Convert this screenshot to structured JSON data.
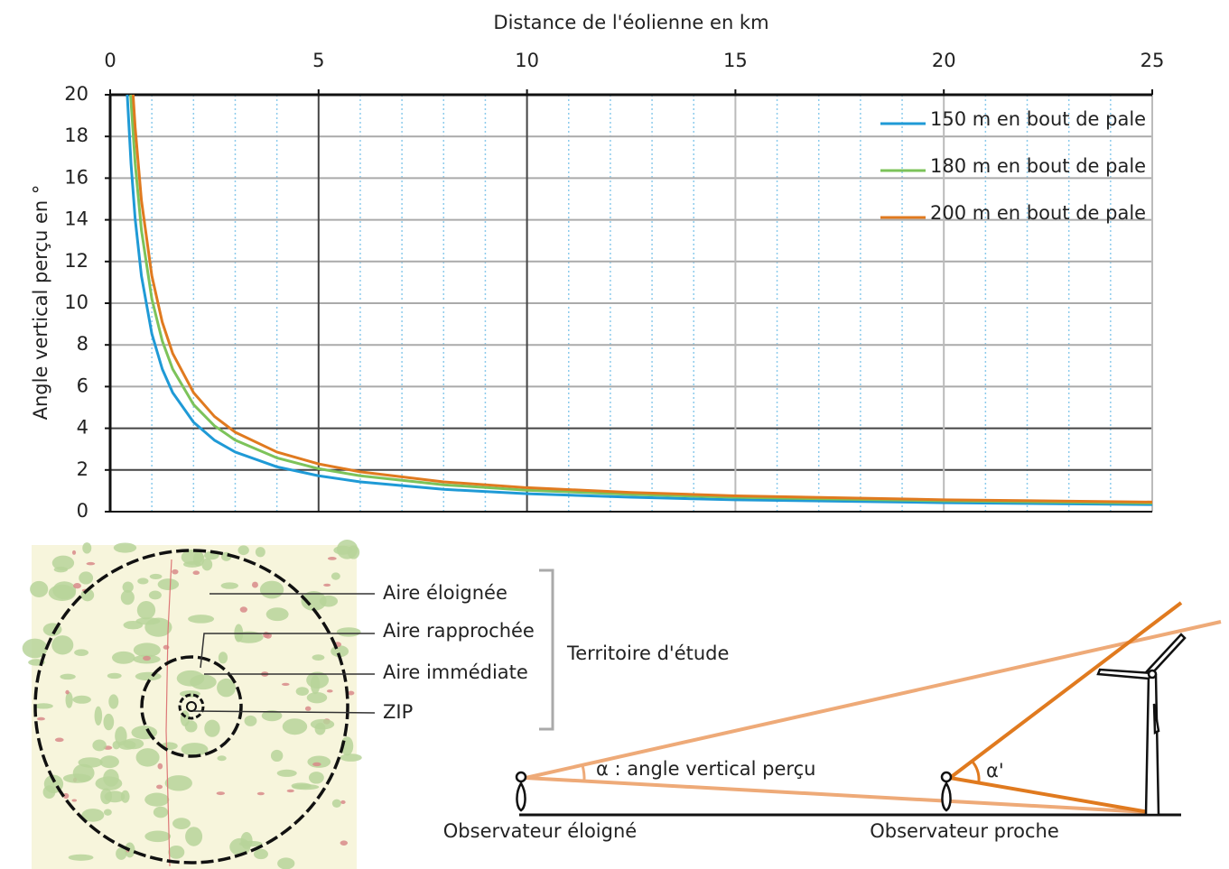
{
  "chart_data": {
    "type": "line",
    "title": "Distance de l'éolienne en km",
    "y_label": "Angle vertical perçu en °",
    "xlim": [
      0,
      25
    ],
    "xticks": [
      0,
      5,
      10,
      15,
      20,
      25
    ],
    "xminorticks": [
      1,
      2,
      3,
      4,
      6,
      7,
      8,
      9,
      11,
      12,
      13,
      14,
      16,
      17,
      18,
      19,
      21,
      22,
      23,
      24
    ],
    "ylim": [
      0,
      20
    ],
    "yticks": [
      0,
      2,
      4,
      6,
      8,
      10,
      12,
      14,
      16,
      18,
      20
    ],
    "grid": true,
    "legend": "top-right",
    "series": [
      {
        "name": "150 m en bout de pale",
        "color": "#1f9ad6",
        "x": [
          0.41,
          0.5,
          0.6,
          0.75,
          1,
          1.25,
          1.5,
          2,
          2.5,
          3,
          4,
          5,
          6,
          8,
          10,
          12.5,
          15,
          20,
          25
        ],
        "values": [
          20,
          16.7,
          14.04,
          11.31,
          8.53,
          6.84,
          5.71,
          4.29,
          3.43,
          2.86,
          2.15,
          1.72,
          1.43,
          1.07,
          0.86,
          0.69,
          0.57,
          0.43,
          0.34
        ]
      },
      {
        "name": "180 m en bout de pale",
        "color": "#7cc35a",
        "x": [
          0.49,
          0.6,
          0.75,
          1,
          1.25,
          1.5,
          2,
          2.5,
          3,
          4,
          5,
          6,
          8,
          10,
          12.5,
          15,
          20,
          25
        ],
        "values": [
          20,
          16.7,
          13.5,
          10.2,
          8.19,
          6.84,
          5.14,
          4.12,
          3.43,
          2.58,
          2.06,
          1.72,
          1.29,
          1.03,
          0.83,
          0.69,
          0.52,
          0.41
        ]
      },
      {
        "name": "200 m en bout de pale",
        "color": "#e07a1f",
        "x": [
          0.55,
          0.6,
          0.75,
          1,
          1.25,
          1.5,
          2,
          2.5,
          3,
          4,
          5,
          6,
          8,
          10,
          12.5,
          15,
          20,
          25
        ],
        "values": [
          20,
          18.43,
          14.93,
          11.31,
          9.09,
          7.59,
          5.71,
          4.57,
          3.81,
          2.86,
          2.29,
          1.91,
          1.43,
          1.15,
          0.92,
          0.76,
          0.57,
          0.46
        ]
      }
    ]
  },
  "map": {
    "labels": [
      "Aire éloignée",
      "Aire rapprochée",
      "Aire immédiate",
      "ZIP"
    ],
    "bracket_label": "Territoire d'étude"
  },
  "diagram": {
    "alpha_label": "α : angle vertical perçu",
    "alpha_prime_label": "α'",
    "far_observer": "Observateur éloigné",
    "near_observer": "Observateur proche"
  }
}
